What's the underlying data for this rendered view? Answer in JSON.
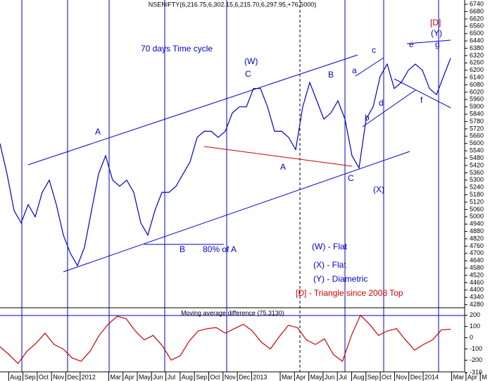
{
  "chart_data": [
    {
      "type": "line",
      "title": "NSENIFTY(6,216.75,6,302.15,6,215.70,6,297.95,+76.5000)",
      "color": "#0000cc",
      "values": [
        5600,
        5350,
        5050,
        4950,
        5100,
        5000,
        5200,
        5300,
        5100,
        4850,
        4700,
        4600,
        4750,
        5050,
        5350,
        5500,
        5300,
        5250,
        5300,
        5200,
        4950,
        4850,
        5050,
        5200,
        5200,
        5250,
        5350,
        5450,
        5650,
        5700,
        5700,
        5650,
        5700,
        5850,
        5900,
        5900,
        6050,
        6050,
        5900,
        5700,
        5700,
        5650,
        5550,
        5900,
        6100,
        5950,
        5800,
        5850,
        5950,
        5800,
        5500,
        5400,
        5800,
        5900,
        6150,
        6250,
        6050,
        6100,
        6200,
        6250,
        6200,
        6050,
        6000,
        6150,
        6298
      ],
      "ylim": [
        4255,
        6775
      ],
      "yticks": [
        6740,
        6680,
        6620,
        6560,
        6500,
        6440,
        6380,
        6320,
        6260,
        6200,
        6140,
        6080,
        6020,
        5960,
        5900,
        5840,
        5780,
        5720,
        5660,
        5600,
        5540,
        5480,
        5420,
        5360,
        5300,
        5240,
        5180,
        5120,
        5060,
        5000,
        4940,
        4880,
        4820,
        4760,
        4700,
        4640,
        4580,
        4520,
        4460,
        4400,
        4340,
        4280
      ],
      "x_axis_labels": [
        "Aug",
        "Sep",
        "Oct",
        "Nov",
        "Dec",
        "2012",
        "Mar",
        "Apr",
        "May",
        "Jun",
        "Jul",
        "Aug",
        "Sep",
        "Oct",
        "Nov",
        "Dec",
        "2013",
        "Mar",
        "Apr",
        "May",
        "Jun",
        "Jul",
        "Aug",
        "Sep",
        "Oct",
        "Nov",
        "Dec",
        "2014",
        "Mar",
        "Apr",
        "M"
      ],
      "annotations": [
        "70 days Time cycle",
        "(W)",
        "C",
        "A",
        "B",
        "80%  of A",
        "A",
        "B",
        "C",
        "(X)",
        "a",
        "b",
        "c",
        "d",
        "e",
        "f",
        "g",
        "(Y)",
        "[D]",
        "(W) - Flat",
        "(X) - Flat",
        "(Y) - Diametric",
        "[D] - Triangle since 2008 Top"
      ]
    },
    {
      "type": "line",
      "title": "Moving average difference (75.3130)",
      "color": "#cc0000",
      "values": [
        -80,
        -150,
        -230,
        -120,
        -50,
        40,
        -60,
        -100,
        -180,
        -210,
        -120,
        20,
        120,
        190,
        170,
        60,
        -20,
        20,
        -70,
        -200,
        -160,
        -30,
        60,
        80,
        90,
        40,
        80,
        120,
        60,
        -40,
        -100,
        10,
        110,
        90,
        -20,
        -60,
        -10,
        -150,
        -210,
        20,
        200,
        120,
        20,
        60,
        80,
        -20,
        -110,
        -60,
        -20,
        70,
        75
      ],
      "ylim": [
        -310,
        260
      ],
      "yticks": [
        200,
        100,
        0,
        -100,
        -200,
        -310
      ]
    }
  ]
}
